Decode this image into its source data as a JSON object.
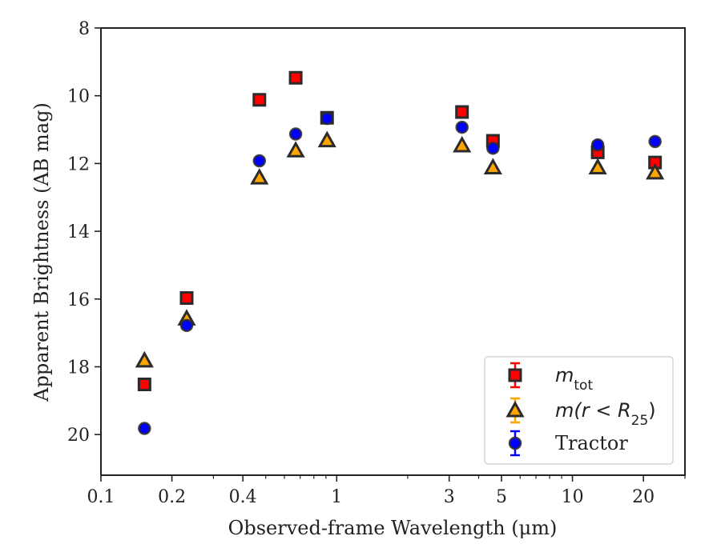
{
  "chart_data": {
    "type": "scatter",
    "xscale": "log",
    "yaxis_inverted": true,
    "xlim": [
      0.1,
      30
    ],
    "ylim": [
      21.2,
      8
    ],
    "xlabel": "Observed-frame Wavelength (μm)",
    "ylabel": "Apparent Brightness (AB mag)",
    "x_ticks": [
      0.1,
      0.2,
      0.4,
      1,
      3,
      5,
      10,
      20
    ],
    "x_tick_labels": [
      "0.1",
      "0.2",
      "0.4",
      "1",
      "3",
      "5",
      "10",
      "20"
    ],
    "y_ticks": [
      8,
      10,
      12,
      14,
      16,
      18,
      20
    ],
    "y_tick_labels": [
      "8",
      "10",
      "12",
      "14",
      "16",
      "18",
      "20"
    ],
    "grid": false,
    "legend_position": "lower-right",
    "series": [
      {
        "name": "m_tot",
        "label_main": "m",
        "label_sub": "tot",
        "marker": "square",
        "color": "#ff0000",
        "x": [
          0.153,
          0.231,
          0.47,
          0.67,
          0.91,
          3.4,
          4.6,
          12.8,
          22.4
        ],
        "y": [
          18.52,
          15.97,
          10.12,
          9.47,
          10.65,
          10.48,
          11.33,
          11.67,
          11.97
        ]
      },
      {
        "name": "m(r < R25)",
        "label_main": "m(r < R",
        "label_sub": "25",
        "label_tail": ")",
        "marker": "triangle",
        "color": "#ffa500",
        "x": [
          0.153,
          0.231,
          0.47,
          0.67,
          0.91,
          3.4,
          4.6,
          12.8,
          22.4
        ],
        "y": [
          17.82,
          16.58,
          12.42,
          11.62,
          11.32,
          11.47,
          12.12,
          12.12,
          12.27
        ]
      },
      {
        "name": "Tractor",
        "label_main": "Tractor",
        "marker": "circle",
        "color": "#0000ff",
        "x": [
          0.153,
          0.231,
          0.47,
          0.67,
          0.91,
          3.4,
          4.6,
          12.8,
          22.4
        ],
        "y": [
          19.82,
          16.78,
          11.92,
          11.13,
          10.67,
          10.93,
          11.55,
          11.45,
          11.35
        ]
      }
    ]
  },
  "colors": {
    "marker_edge": "#2b2b2b",
    "axis": "#222222",
    "legend_border": "#cccccc"
  }
}
